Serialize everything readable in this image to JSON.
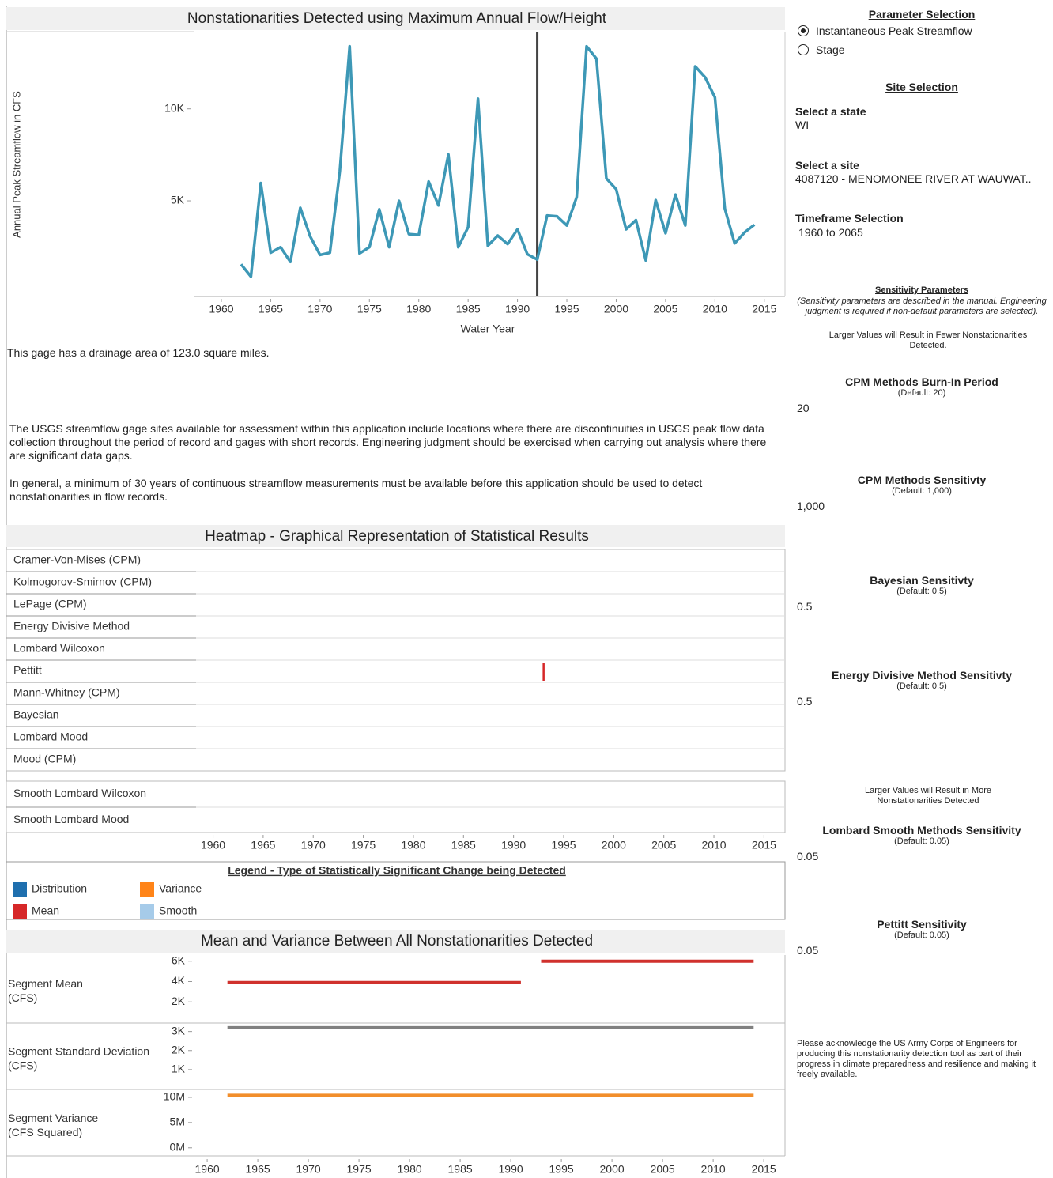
{
  "chart_data": [
    {
      "type": "line",
      "title": "Nonstationarities Detected using Maximum Annual Flow/Height",
      "ylabel": "Annual Peak Streamflow in CFS",
      "xlabel": "Water Year",
      "x": [
        1962,
        1963,
        1964,
        1965,
        1966,
        1967,
        1968,
        1969,
        1970,
        1971,
        1972,
        1973,
        1974,
        1975,
        1976,
        1977,
        1978,
        1979,
        1980,
        1981,
        1982,
        1983,
        1984,
        1985,
        1986,
        1987,
        1988,
        1989,
        1990,
        1991,
        1992,
        1993,
        1994,
        1995,
        1996,
        1997,
        1998,
        1999,
        2000,
        2001,
        2002,
        2003,
        2004,
        2005,
        2006,
        2007,
        2008,
        2009,
        2010,
        2011,
        2012,
        2013,
        2014
      ],
      "values": [
        1550,
        880,
        5970,
        2180,
        2480,
        1680,
        4620,
        3070,
        2060,
        2180,
        6600,
        13400,
        2140,
        2480,
        4540,
        2480,
        5000,
        3190,
        3150,
        6050,
        4750,
        7520,
        2480,
        3570,
        10550,
        2560,
        3110,
        2650,
        3450,
        2100,
        1810,
        4200,
        4160,
        3660,
        5210,
        13400,
        12730,
        6220,
        5630,
        3450,
        3950,
        1760,
        5040,
        3240,
        5340,
        3660,
        12310,
        11720,
        10630,
        4580,
        2690,
        3280,
        3700
      ],
      "color": "#3d98b6",
      "changepoints": [
        1992
      ],
      "xlim": [
        1957.2,
        2017.1
      ],
      "xticks": [
        1960,
        1965,
        1970,
        1975,
        1980,
        1985,
        1990,
        1995,
        2000,
        2005,
        2010,
        2015
      ],
      "ylim": [
        -200,
        14200
      ],
      "yticks": [
        {
          "value": 5000,
          "label": "5K"
        },
        {
          "value": 10000,
          "label": "10K"
        }
      ]
    },
    {
      "type": "heatmap",
      "title": "Heatmap - Graphical Representation of Statistical Results",
      "series": [
        {
          "name": "Cramer-Von-Mises (CPM)",
          "x": []
        },
        {
          "name": "Kolmogorov-Smirnov (CPM)",
          "x": []
        },
        {
          "name": "LePage (CPM)",
          "x": []
        },
        {
          "name": "Energy Divisive Method",
          "x": []
        },
        {
          "name": "Lombard Wilcoxon",
          "x": []
        },
        {
          "name": "Pettitt",
          "x": [
            1993
          ],
          "color": "#d62728"
        },
        {
          "name": "Mann-Whitney (CPM)",
          "x": []
        },
        {
          "name": "Bayesian",
          "x": []
        },
        {
          "name": "Lombard Mood",
          "x": []
        },
        {
          "name": "Mood (CPM)",
          "x": []
        },
        {
          "name": "Smooth Lombard Wilcoxon",
          "x": []
        },
        {
          "name": "Smooth Lombard Mood",
          "x": []
        }
      ],
      "xlim": [
        1958.3,
        2017.1
      ],
      "xticks": [
        1960,
        1965,
        1970,
        1975,
        1980,
        1985,
        1990,
        1995,
        2000,
        2005,
        2010,
        2015
      ],
      "legend": {
        "title": "Legend - Type of Statistically Significant Change being Detected",
        "items": [
          {
            "name": "Distribution",
            "color": "#1f6fae"
          },
          {
            "name": "Mean",
            "color": "#d62728"
          },
          {
            "name": "Variance",
            "color": "#ff8418"
          },
          {
            "name": "Smooth",
            "color": "#a6cbe9"
          }
        ]
      }
    },
    {
      "type": "segment",
      "title": "Mean and Variance Between All Nonstationarities Detected",
      "xlim": [
        1958.9,
        2017.1
      ],
      "xticks": [
        1960,
        1965,
        1970,
        1975,
        1980,
        1985,
        1990,
        1995,
        2000,
        2005,
        2010,
        2015
      ],
      "panels": [
        {
          "label": [
            "Segment Mean",
            "(CFS)"
          ],
          "color": "#d0312d",
          "ylim": [
            0,
            6600
          ],
          "yticks": [
            {
              "value": 2000,
              "label": "2K"
            },
            {
              "value": 4000,
              "label": "4K"
            },
            {
              "value": 6000,
              "label": "6K"
            }
          ],
          "segments": [
            {
              "x": [
                1962,
                1991
              ],
              "value": 3900
            },
            {
              "x": [
                1993,
                2014
              ],
              "value": 6000
            }
          ]
        },
        {
          "label": [
            "Segment Standard Deviation",
            "(CFS)"
          ],
          "color": "#808080",
          "ylim": [
            0,
            3400
          ],
          "yticks": [
            {
              "value": 1000,
              "label": "1K"
            },
            {
              "value": 2000,
              "label": "2K"
            },
            {
              "value": 3000,
              "label": "3K"
            }
          ],
          "segments": [
            {
              "x": [
                1962,
                2014
              ],
              "value": 3200
            }
          ]
        },
        {
          "label": [
            "Segment Variance",
            "(CFS Squared)"
          ],
          "color": "#f28e2b",
          "ylim": [
            -1600000,
            11400000
          ],
          "yticks": [
            {
              "value": 0,
              "label": "0M"
            },
            {
              "value": 5000000,
              "label": "5M"
            },
            {
              "value": 10000000,
              "label": "10M"
            }
          ],
          "segments": [
            {
              "x": [
                1962,
                2014
              ],
              "value": 10400000
            }
          ]
        }
      ]
    }
  ],
  "notes": {
    "drainage": "This gage has a drainage area of 123.0 square miles.",
    "paragraphs": [
      "The USGS streamflow gage sites available for assessment within this application include locations where there are discontinuities in USGS peak flow data collection throughout the period of record and gages with short records. Engineering judgment should be exercised when carrying out analysis where there are significant data gaps.",
      "In general, a minimum of 30 years of continuous streamflow measurements must be available before this application should be used to detect nonstationarities in flow records."
    ]
  },
  "sidebar": {
    "parameter_heading": "Parameter Selection",
    "options": [
      "Instantaneous Peak Streamflow",
      "Stage"
    ],
    "site_heading": "Site Selection",
    "state_label": "Select a state",
    "state_value": "WI",
    "site_label": "Select a site",
    "site_value": "4087120 - MENOMONEE RIVER AT WAUWAT..",
    "timeframe_label": "Timeframe Selection",
    "timeframe_value": "1960 to 2065",
    "sensitivity_heading": "Sensitivity Parameters",
    "sensitivity_note": "(Sensitivity parameters are described in the manual. Engineering judgment is required if non-default parameters are selected).",
    "fewer_note": "Larger Values will Result in Fewer Nonstationarities Detected.",
    "more_note": "Larger Values will Result in More Nonstationarities Detected",
    "params": [
      {
        "label": "CPM Methods Burn-In Period",
        "default": "(Default: 20)",
        "value": "20"
      },
      {
        "label": "CPM Methods Sensitivty",
        "default": "(Default: 1,000)",
        "value": "1,000"
      },
      {
        "label": "Bayesian Sensitivty",
        "default": "(Default: 0.5)",
        "value": "0.5"
      },
      {
        "label": "Energy Divisive Method Sensitivty",
        "default": "(Default: 0.5)",
        "value": "0.5"
      },
      {
        "label": "Lombard Smooth Methods Sensitivity",
        "default": "(Default: 0.05)",
        "value": "0.05"
      },
      {
        "label": "Pettitt Sensitivity",
        "default": "(Default: 0.05)",
        "value": "0.05"
      }
    ],
    "acknowledgement": "Please acknowledge the US Army Corps of Engineers for producing this nonstationarity detection tool as part of their progress in climate preparedness and resilience and making it freely available."
  }
}
